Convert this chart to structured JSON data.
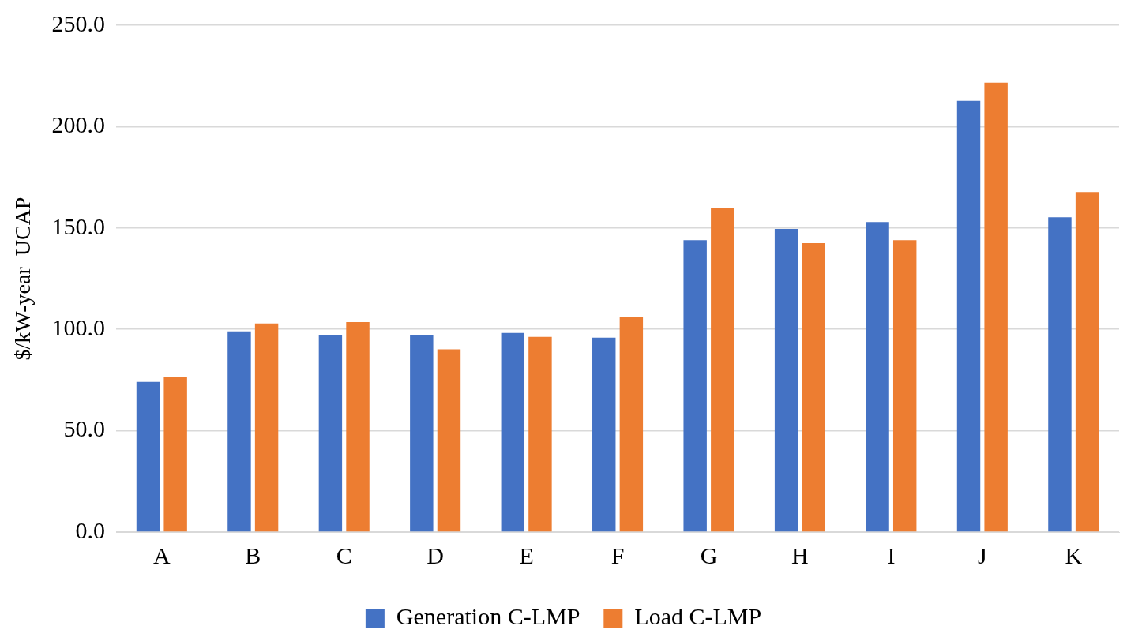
{
  "chart_data": {
    "type": "bar",
    "ylabel": "$/kW-year  UCAP",
    "categories": [
      "A",
      "B",
      "C",
      "D",
      "E",
      "F",
      "G",
      "H",
      "I",
      "J",
      "K"
    ],
    "series": [
      {
        "name": "Generation C-LMP",
        "color": "#4472c4",
        "values": [
          74.1,
          99.0,
          97.4,
          97.4,
          98.2,
          95.9,
          144.0,
          149.5,
          152.9,
          212.7,
          155.3
        ]
      },
      {
        "name": "Load C-LMP",
        "color": "#ed7d31",
        "values": [
          76.5,
          102.9,
          103.6,
          90.1,
          96.3,
          106.0,
          159.9,
          142.5,
          144.0,
          221.7,
          167.7
        ]
      }
    ],
    "ylim": [
      0,
      250
    ],
    "yticks": [
      {
        "value": 0,
        "label": "0.0"
      },
      {
        "value": 50,
        "label": "50.0"
      },
      {
        "value": 100,
        "label": "100.0"
      },
      {
        "value": 150,
        "label": "150.0"
      },
      {
        "value": 200,
        "label": "200.0"
      },
      {
        "value": 250,
        "label": "250.0"
      }
    ],
    "grid": "y",
    "legend": "bottom"
  }
}
